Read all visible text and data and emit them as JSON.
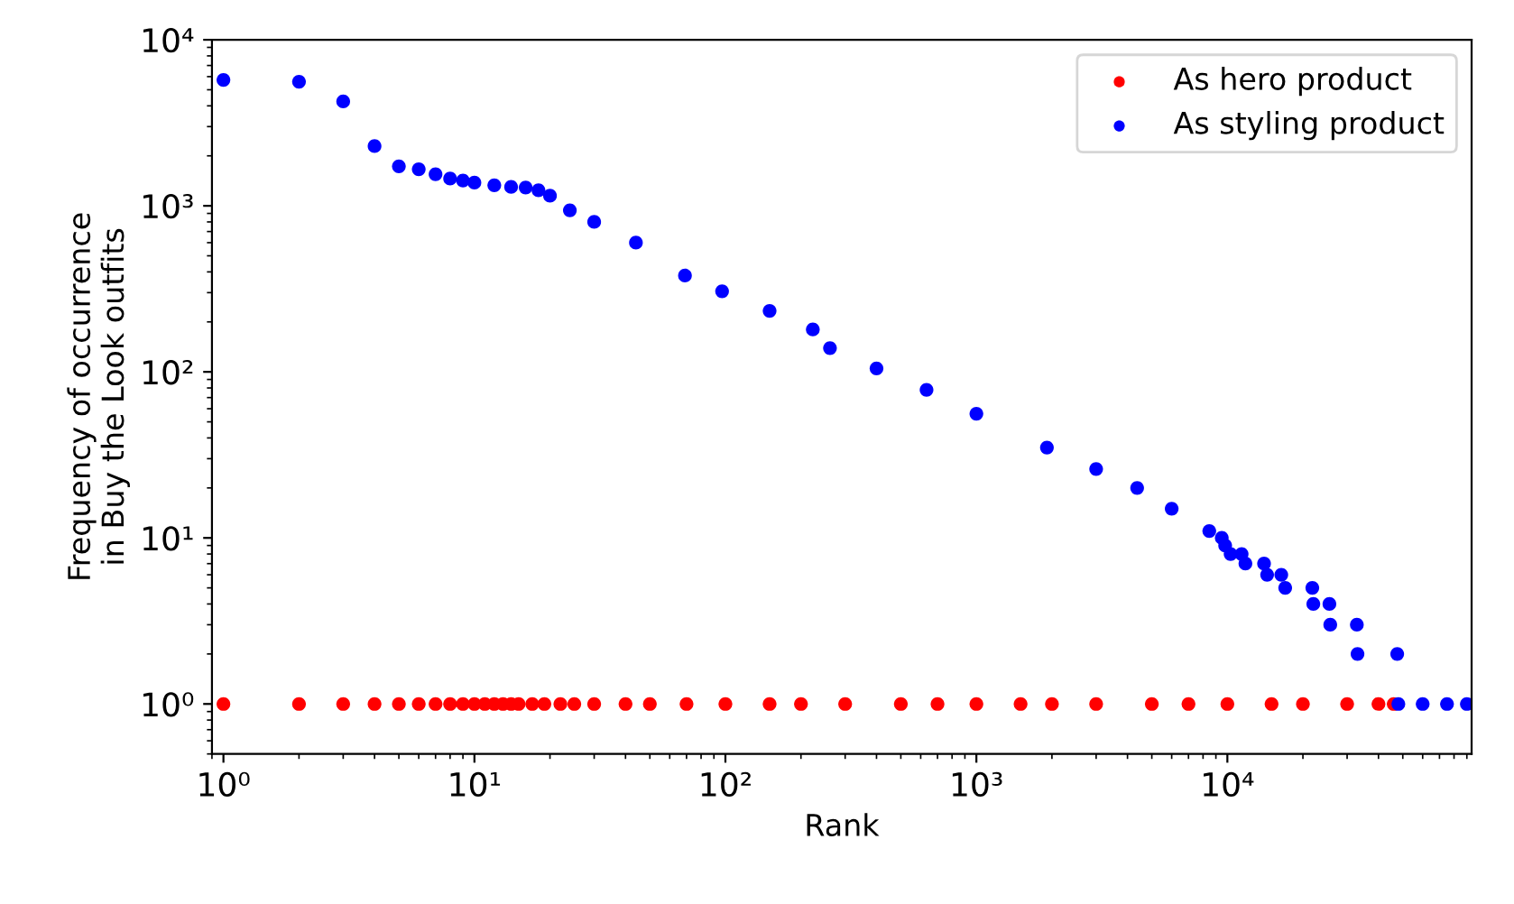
{
  "chart_data": {
    "type": "scatter",
    "xlabel": "Rank",
    "ylabel": "Frequency of occurrence\nin Buy the Look outfits",
    "log": "xy",
    "xlim": [
      0.9,
      94000
    ],
    "ylim": [
      0.5,
      10000
    ],
    "xticks": [
      {
        "value": 1,
        "label": "10⁰"
      },
      {
        "value": 10,
        "label": "10¹"
      },
      {
        "value": 100,
        "label": "10²"
      },
      {
        "value": 1000,
        "label": "10³"
      },
      {
        "value": 10000,
        "label": "10⁴"
      }
    ],
    "yticks": [
      {
        "value": 1,
        "label": "10⁰"
      },
      {
        "value": 10,
        "label": "10¹"
      },
      {
        "value": 100,
        "label": "10²"
      },
      {
        "value": 1000,
        "label": "10³"
      },
      {
        "value": 10000,
        "label": "10⁴"
      }
    ],
    "grid": false,
    "legend": "top right",
    "marker": "circle",
    "series": [
      {
        "name": "As hero product",
        "color": "#ff0000",
        "x": [
          1,
          2,
          3,
          4,
          5,
          6,
          7,
          8,
          9,
          10,
          11,
          12,
          13,
          14,
          15,
          17,
          19,
          22,
          25,
          30,
          40,
          50,
          70,
          100,
          150,
          200,
          300,
          500,
          700,
          1000,
          1500,
          2000,
          3000,
          5000,
          7000,
          10000,
          15000,
          20000,
          30000,
          40000,
          46000
        ],
        "values": [
          1,
          1,
          1,
          1,
          1,
          1,
          1,
          1,
          1,
          1,
          1,
          1,
          1,
          1,
          1,
          1,
          1,
          1,
          1,
          1,
          1,
          1,
          1,
          1,
          1,
          1,
          1,
          1,
          1,
          1,
          1,
          1,
          1,
          1,
          1,
          1,
          1,
          1,
          1,
          1,
          1
        ]
      },
      {
        "name": "As styling product",
        "color": "#0000ff",
        "x": [
          1,
          2,
          3,
          4,
          5,
          6,
          7,
          8,
          9,
          10,
          12,
          14,
          16,
          18,
          20,
          24,
          30,
          44,
          69,
          97,
          150,
          223,
          261,
          400,
          633,
          1000,
          1910,
          3000,
          4370,
          6000,
          8470,
          9500,
          9800,
          10300,
          11400,
          11800,
          14000,
          14400,
          16400,
          17000,
          21800,
          22000,
          25500,
          25700,
          32800,
          33000,
          47500,
          48000,
          60000,
          75000,
          90000
        ],
        "values": [
          5730,
          5590,
          4250,
          2290,
          1730,
          1660,
          1550,
          1460,
          1420,
          1380,
          1330,
          1300,
          1290,
          1240,
          1150,
          940,
          800,
          600,
          380,
          306,
          233,
          180,
          139,
          105,
          78,
          56,
          35,
          26,
          20,
          15,
          11,
          10,
          9,
          8,
          8,
          7,
          7,
          6,
          6,
          5,
          5,
          4,
          4,
          3,
          3,
          2,
          2,
          1,
          1,
          1,
          1
        ]
      }
    ]
  }
}
